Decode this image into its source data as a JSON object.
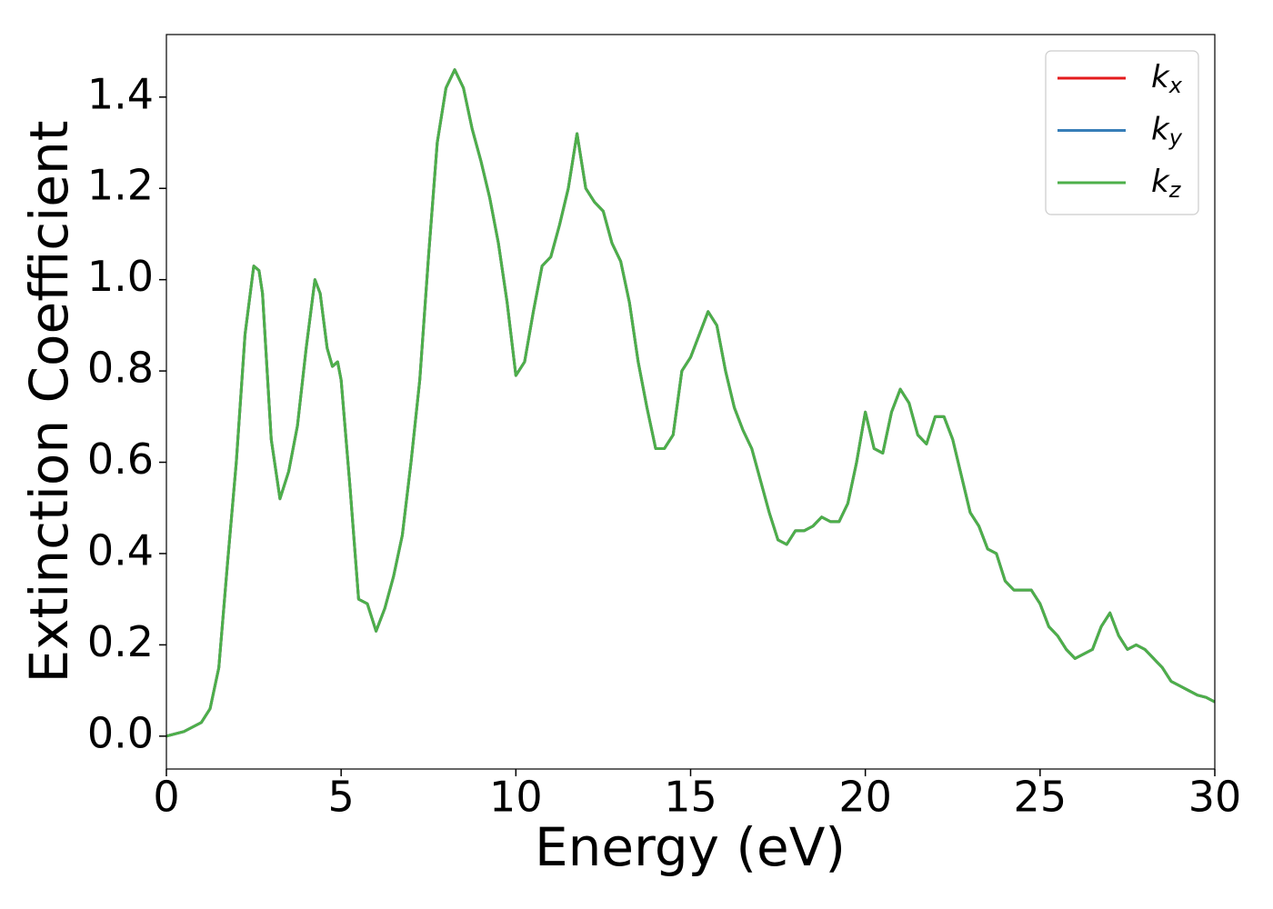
{
  "chart_data": {
    "type": "line",
    "xlabel": "Energy (eV)",
    "ylabel": "Extinction Coefficient",
    "x": [
      0,
      0.5,
      1.0,
      1.25,
      1.5,
      1.75,
      2.0,
      2.25,
      2.5,
      2.65,
      2.75,
      3.0,
      3.25,
      3.5,
      3.75,
      4.0,
      4.25,
      4.4,
      4.6,
      4.75,
      4.9,
      5.0,
      5.25,
      5.5,
      5.75,
      6.0,
      6.25,
      6.5,
      6.75,
      7.0,
      7.25,
      7.5,
      7.75,
      8.0,
      8.25,
      8.5,
      8.75,
      9.0,
      9.25,
      9.5,
      9.75,
      10.0,
      10.25,
      10.5,
      10.75,
      11.0,
      11.25,
      11.5,
      11.75,
      12.0,
      12.25,
      12.5,
      12.75,
      13.0,
      13.25,
      13.5,
      13.75,
      14.0,
      14.25,
      14.5,
      14.75,
      15.0,
      15.25,
      15.5,
      15.75,
      16.0,
      16.25,
      16.5,
      16.75,
      17.0,
      17.25,
      17.5,
      17.75,
      18.0,
      18.25,
      18.5,
      18.75,
      19.0,
      19.25,
      19.5,
      19.75,
      20.0,
      20.25,
      20.5,
      20.75,
      21.0,
      21.25,
      21.5,
      21.75,
      22.0,
      22.25,
      22.5,
      22.75,
      23.0,
      23.25,
      23.5,
      23.75,
      24.0,
      24.25,
      24.5,
      24.75,
      25.0,
      25.25,
      25.5,
      25.75,
      26.0,
      26.25,
      26.5,
      26.75,
      27.0,
      27.25,
      27.5,
      27.75,
      28.0,
      28.25,
      28.5,
      28.75,
      29.0,
      29.25,
      29.5,
      29.75,
      30.0
    ],
    "series": [
      {
        "name": "kx",
        "color": "#e41a1c",
        "values": [
          0.0,
          0.01,
          0.03,
          0.06,
          0.15,
          0.38,
          0.6,
          0.88,
          1.03,
          1.02,
          0.97,
          0.65,
          0.52,
          0.58,
          0.68,
          0.85,
          1.0,
          0.97,
          0.85,
          0.81,
          0.82,
          0.78,
          0.55,
          0.3,
          0.29,
          0.23,
          0.28,
          0.35,
          0.44,
          0.6,
          0.78,
          1.05,
          1.3,
          1.42,
          1.46,
          1.42,
          1.33,
          1.26,
          1.18,
          1.08,
          0.95,
          0.79,
          0.82,
          0.93,
          1.03,
          1.05,
          1.12,
          1.2,
          1.32,
          1.2,
          1.17,
          1.15,
          1.08,
          1.04,
          0.95,
          0.82,
          0.72,
          0.63,
          0.63,
          0.66,
          0.8,
          0.83,
          0.88,
          0.93,
          0.9,
          0.8,
          0.72,
          0.67,
          0.63,
          0.56,
          0.49,
          0.43,
          0.42,
          0.45,
          0.45,
          0.46,
          0.48,
          0.47,
          0.47,
          0.51,
          0.6,
          0.71,
          0.63,
          0.62,
          0.71,
          0.76,
          0.73,
          0.66,
          0.64,
          0.7,
          0.7,
          0.65,
          0.57,
          0.49,
          0.46,
          0.41,
          0.4,
          0.34,
          0.32,
          0.32,
          0.32,
          0.29,
          0.24,
          0.22,
          0.19,
          0.17,
          0.18,
          0.19,
          0.24,
          0.27,
          0.22,
          0.19,
          0.2,
          0.19,
          0.17,
          0.15,
          0.12,
          0.11,
          0.1,
          0.09,
          0.085,
          0.075
        ]
      },
      {
        "name": "ky",
        "color": "#377eb8",
        "values": [
          0.0,
          0.01,
          0.03,
          0.06,
          0.15,
          0.38,
          0.6,
          0.88,
          1.03,
          1.02,
          0.97,
          0.65,
          0.52,
          0.58,
          0.68,
          0.85,
          1.0,
          0.97,
          0.85,
          0.81,
          0.82,
          0.78,
          0.55,
          0.3,
          0.29,
          0.23,
          0.28,
          0.35,
          0.44,
          0.6,
          0.78,
          1.05,
          1.3,
          1.42,
          1.46,
          1.42,
          1.33,
          1.26,
          1.18,
          1.08,
          0.95,
          0.79,
          0.82,
          0.93,
          1.03,
          1.05,
          1.12,
          1.2,
          1.32,
          1.2,
          1.17,
          1.15,
          1.08,
          1.04,
          0.95,
          0.82,
          0.72,
          0.63,
          0.63,
          0.66,
          0.8,
          0.83,
          0.88,
          0.93,
          0.9,
          0.8,
          0.72,
          0.67,
          0.63,
          0.56,
          0.49,
          0.43,
          0.42,
          0.45,
          0.45,
          0.46,
          0.48,
          0.47,
          0.47,
          0.51,
          0.6,
          0.71,
          0.63,
          0.62,
          0.71,
          0.76,
          0.73,
          0.66,
          0.64,
          0.7,
          0.7,
          0.65,
          0.57,
          0.49,
          0.46,
          0.41,
          0.4,
          0.34,
          0.32,
          0.32,
          0.32,
          0.29,
          0.24,
          0.22,
          0.19,
          0.17,
          0.18,
          0.19,
          0.24,
          0.27,
          0.22,
          0.19,
          0.2,
          0.19,
          0.17,
          0.15,
          0.12,
          0.11,
          0.1,
          0.09,
          0.085,
          0.075
        ]
      },
      {
        "name": "kz",
        "color": "#4daf4a",
        "values": [
          0.0,
          0.01,
          0.03,
          0.06,
          0.15,
          0.38,
          0.6,
          0.88,
          1.03,
          1.02,
          0.97,
          0.65,
          0.52,
          0.58,
          0.68,
          0.85,
          1.0,
          0.97,
          0.85,
          0.81,
          0.82,
          0.78,
          0.55,
          0.3,
          0.29,
          0.23,
          0.28,
          0.35,
          0.44,
          0.6,
          0.78,
          1.05,
          1.3,
          1.42,
          1.46,
          1.42,
          1.33,
          1.26,
          1.18,
          1.08,
          0.95,
          0.79,
          0.82,
          0.93,
          1.03,
          1.05,
          1.12,
          1.2,
          1.32,
          1.2,
          1.17,
          1.15,
          1.08,
          1.04,
          0.95,
          0.82,
          0.72,
          0.63,
          0.63,
          0.66,
          0.8,
          0.83,
          0.88,
          0.93,
          0.9,
          0.8,
          0.72,
          0.67,
          0.63,
          0.56,
          0.49,
          0.43,
          0.42,
          0.45,
          0.45,
          0.46,
          0.48,
          0.47,
          0.47,
          0.51,
          0.6,
          0.71,
          0.63,
          0.62,
          0.71,
          0.76,
          0.73,
          0.66,
          0.64,
          0.7,
          0.7,
          0.65,
          0.57,
          0.49,
          0.46,
          0.41,
          0.4,
          0.34,
          0.32,
          0.32,
          0.32,
          0.29,
          0.24,
          0.22,
          0.19,
          0.17,
          0.18,
          0.19,
          0.24,
          0.27,
          0.22,
          0.19,
          0.2,
          0.19,
          0.17,
          0.15,
          0.12,
          0.11,
          0.1,
          0.09,
          0.085,
          0.075
        ]
      }
    ],
    "xlim": [
      0,
      30
    ],
    "xticks": [
      0,
      5,
      10,
      15,
      20,
      25,
      30
    ],
    "ylim": [
      -0.072,
      1.537
    ],
    "yticks": [
      {
        "value": 0,
        "label": "0.0"
      },
      0.2,
      0.4,
      0.6,
      0.8,
      {
        "value": 1,
        "label": "1.0"
      },
      1.2,
      1.4
    ],
    "grid": false,
    "legend": "upper right"
  }
}
